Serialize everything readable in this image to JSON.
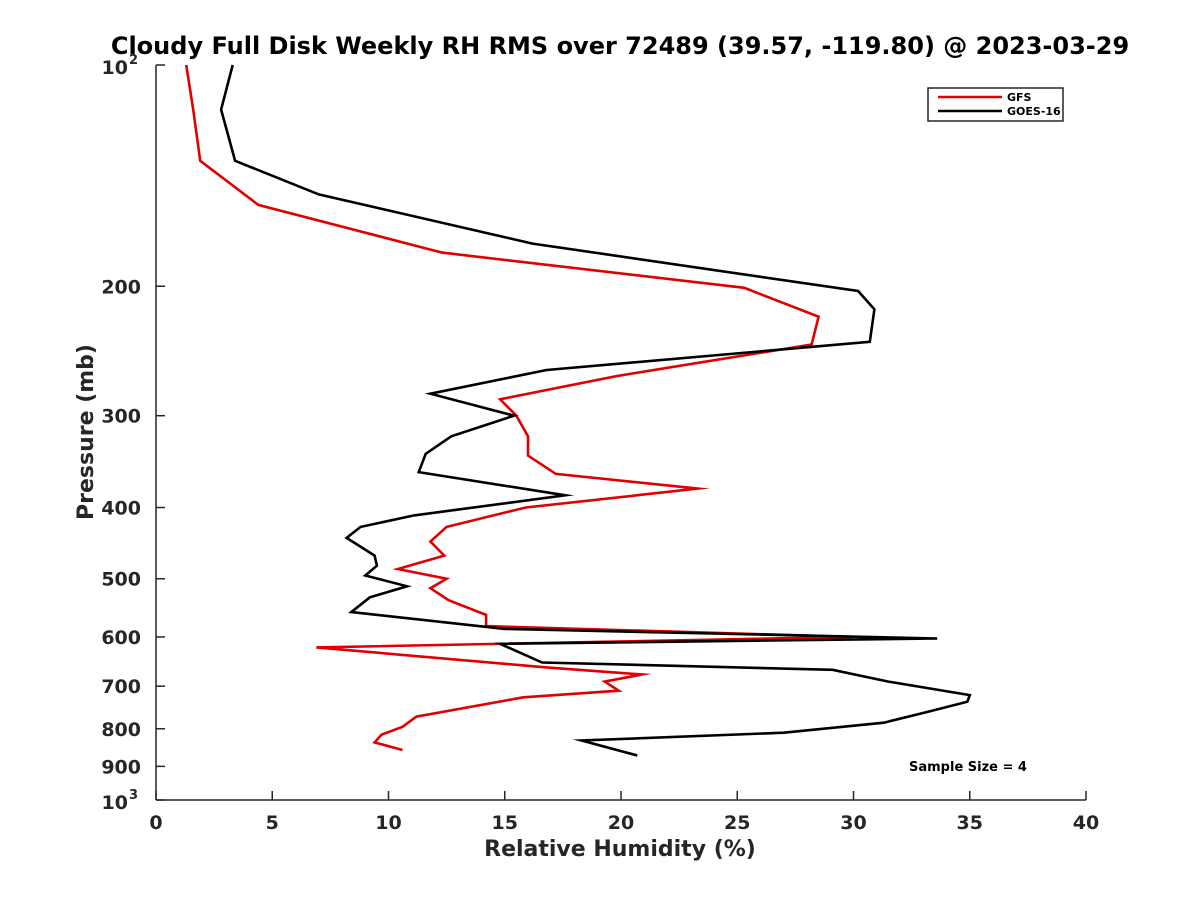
{
  "chart_data": {
    "type": "line",
    "title": "Cloudy Full Disk Weekly RH RMS over 72489 (39.57, -119.80) @ 2023-03-29",
    "xlabel": "Relative Humidity (%)",
    "ylabel": "Pressure (mb)",
    "xlim": [
      0,
      40
    ],
    "ylim": [
      100,
      1000
    ],
    "y_scale": "log",
    "y_reversed": true,
    "grid": false,
    "legend_position": "top-right",
    "x_ticks": [
      "0",
      "5",
      "10",
      "15",
      "20",
      "25",
      "30",
      "35",
      "40"
    ],
    "y_ticks": [
      {
        "value": 100,
        "base": "10",
        "exp": "2"
      },
      {
        "value": 200,
        "label": "200"
      },
      {
        "value": 300,
        "label": "300"
      },
      {
        "value": 400,
        "label": "400"
      },
      {
        "value": 500,
        "label": "500"
      },
      {
        "value": 600,
        "label": "600"
      },
      {
        "value": 700,
        "label": "700"
      },
      {
        "value": 800,
        "label": "800"
      },
      {
        "value": 900,
        "label": "900"
      },
      {
        "value": 1000,
        "base": "10",
        "exp": "3"
      }
    ],
    "annotation": "Sample Size = 4",
    "series": [
      {
        "name": "GFS",
        "color": "#e00000",
        "points": [
          [
            1.3,
            100
          ],
          [
            1.6,
            115
          ],
          [
            1.9,
            135
          ],
          [
            4.4,
            155
          ],
          [
            12.3,
            180
          ],
          [
            25.3,
            201
          ],
          [
            28.5,
            220
          ],
          [
            28.2,
            240
          ],
          [
            19.8,
            265
          ],
          [
            14.8,
            285
          ],
          [
            15.5,
            300
          ],
          [
            16.0,
            320
          ],
          [
            16.0,
            340
          ],
          [
            17.2,
            360
          ],
          [
            23.3,
            377
          ],
          [
            15.9,
            400
          ],
          [
            12.5,
            425
          ],
          [
            11.8,
            445
          ],
          [
            12.4,
            465
          ],
          [
            10.4,
            485
          ],
          [
            12.5,
            500
          ],
          [
            11.8,
            515
          ],
          [
            12.6,
            535
          ],
          [
            14.2,
            560
          ],
          [
            14.2,
            580
          ],
          [
            30.0,
            600
          ],
          [
            6.9,
            620
          ],
          [
            16.8,
            660
          ],
          [
            20.9,
            675
          ],
          [
            19.3,
            690
          ],
          [
            19.9,
            710
          ],
          [
            15.8,
            725
          ],
          [
            11.2,
            770
          ],
          [
            10.6,
            795
          ],
          [
            9.7,
            815
          ],
          [
            9.4,
            835
          ],
          [
            10.6,
            855
          ]
        ]
      },
      {
        "name": "GOES-16",
        "color": "#000000",
        "points": [
          [
            3.3,
            100
          ],
          [
            2.8,
            115
          ],
          [
            3.4,
            135
          ],
          [
            7.0,
            150
          ],
          [
            16.2,
            175
          ],
          [
            30.2,
            203
          ],
          [
            30.9,
            215
          ],
          [
            30.7,
            238
          ],
          [
            16.8,
            260
          ],
          [
            11.8,
            280
          ],
          [
            15.4,
            300
          ],
          [
            12.7,
            320
          ],
          [
            11.6,
            338
          ],
          [
            11.3,
            358
          ],
          [
            17.6,
            385
          ],
          [
            11.1,
            410
          ],
          [
            8.8,
            425
          ],
          [
            8.2,
            440
          ],
          [
            9.4,
            465
          ],
          [
            9.5,
            480
          ],
          [
            9.0,
            495
          ],
          [
            10.8,
            512
          ],
          [
            9.2,
            530
          ],
          [
            8.4,
            555
          ],
          [
            15.0,
            585
          ],
          [
            33.6,
            603
          ],
          [
            14.8,
            613
          ],
          [
            16.6,
            650
          ],
          [
            29.1,
            665
          ],
          [
            31.5,
            690
          ],
          [
            35.0,
            720
          ],
          [
            34.9,
            735
          ],
          [
            33.1,
            760
          ],
          [
            31.3,
            785
          ],
          [
            27.0,
            810
          ],
          [
            18.3,
            830
          ],
          [
            20.7,
            870
          ]
        ]
      }
    ]
  }
}
